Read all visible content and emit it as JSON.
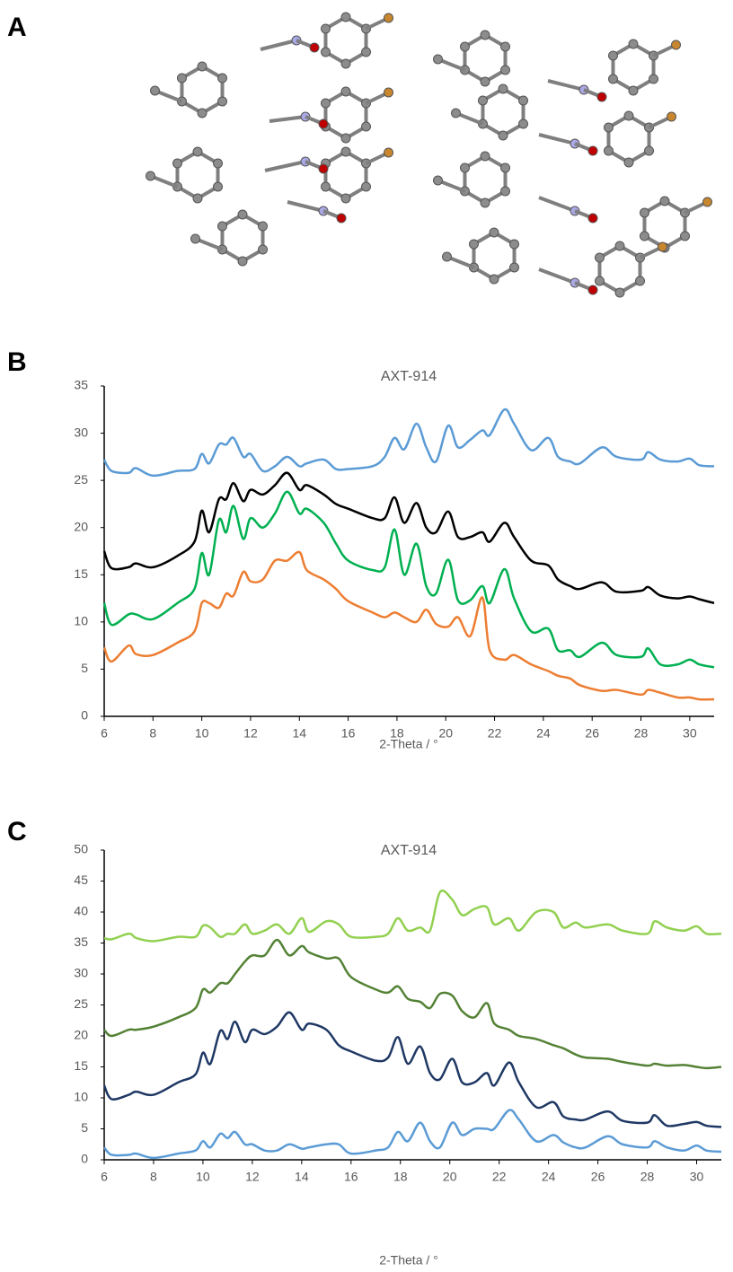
{
  "panel_labels": [
    "A",
    "B",
    "C"
  ],
  "chart_data": [
    {
      "type": "line",
      "title": "AXT-914",
      "x_label": "2-Theta / °",
      "x": [
        6,
        6.3,
        7,
        7.3,
        8,
        9,
        9.7,
        10,
        10.3,
        10.7,
        11,
        11.3,
        11.7,
        12,
        12.5,
        13,
        13.5,
        14,
        14.3,
        15,
        15.5,
        16,
        17,
        17.5,
        17.9,
        18.3,
        18.8,
        19.2,
        19.6,
        20.1,
        20.5,
        21,
        21.5,
        21.8,
        22.4,
        22.8,
        23.5,
        24.2,
        24.6,
        25.1,
        25.5,
        26.4,
        27,
        28,
        28.3,
        28.8,
        29.5,
        30,
        30.4,
        31
      ],
      "series": [
        {
          "color": "#5b9bd5",
          "values": [
            27.2,
            26,
            25.8,
            26.3,
            25.5,
            26,
            26.2,
            27.8,
            26.8,
            28.8,
            28.8,
            29.5,
            27.5,
            27.8,
            26,
            26.5,
            27.5,
            26.5,
            26.8,
            27.2,
            26.2,
            26.2,
            26.5,
            27.5,
            29.5,
            28.3,
            31,
            28.5,
            27,
            30.8,
            28.5,
            29.3,
            30.3,
            29.8,
            32.5,
            31,
            28.2,
            29.5,
            27.5,
            27,
            26.8,
            28.5,
            27.5,
            27.2,
            28,
            27.2,
            27,
            27.3,
            26.6,
            26.5
          ]
        },
        {
          "color": "#000000",
          "values": [
            17.5,
            15.7,
            15.8,
            16.2,
            15.8,
            17,
            18.5,
            21.8,
            19.5,
            23,
            23,
            24.7,
            22.8,
            24,
            23.5,
            24.5,
            25.8,
            24,
            24.5,
            23.5,
            22.5,
            22,
            21,
            21,
            23.2,
            20.5,
            22.6,
            20,
            19.5,
            21.7,
            19,
            19,
            19.5,
            18.5,
            20.5,
            19,
            16.5,
            16,
            14.5,
            13.8,
            13.5,
            14.2,
            13.2,
            13.3,
            13.7,
            12.8,
            12.5,
            12.7,
            12.4,
            12
          ]
        },
        {
          "color": "#00b050",
          "values": [
            12,
            9.7,
            10.8,
            10.8,
            10.3,
            12,
            13.5,
            17.3,
            15,
            20.8,
            19.5,
            22.3,
            18.8,
            21,
            20,
            21.5,
            23.8,
            21.5,
            22,
            20.5,
            18.3,
            16.5,
            15.5,
            15.8,
            19.8,
            15,
            18.3,
            13.8,
            13,
            16.6,
            12.3,
            12.3,
            13.8,
            12,
            15.6,
            12.5,
            9,
            9.3,
            7,
            7,
            6.3,
            7.8,
            6.5,
            6.3,
            7.2,
            5.5,
            5.5,
            6,
            5.5,
            5.2
          ]
        },
        {
          "color": "#ed7d31",
          "values": [
            7.3,
            5.8,
            7.5,
            6.6,
            6.5,
            7.8,
            9,
            12,
            12,
            11.5,
            13,
            12.8,
            15.3,
            14.3,
            14.5,
            16.5,
            16.5,
            17.4,
            15.5,
            14.5,
            13.5,
            12.2,
            11,
            10.5,
            11,
            10.5,
            10,
            11.3,
            9.8,
            9.5,
            10.5,
            8.5,
            12.6,
            7,
            6,
            6.5,
            5.5,
            4.8,
            4.3,
            4,
            3.3,
            2.7,
            2.8,
            2.3,
            2.8,
            2.5,
            2,
            2,
            1.8,
            1.8
          ]
        }
      ],
      "xlim": [
        6,
        31
      ],
      "xticks": [
        6,
        8,
        10,
        12,
        14,
        16,
        18,
        20,
        22,
        24,
        26,
        28,
        30
      ],
      "ylim": [
        0,
        35
      ],
      "yticks": [
        0,
        5,
        10,
        15,
        20,
        25,
        30,
        35
      ],
      "grid": false
    },
    {
      "type": "line",
      "title": "AXT-914",
      "x_label": "2-Theta / °",
      "x": [
        6,
        6.3,
        7,
        7.3,
        8,
        9,
        9.7,
        10,
        10.3,
        10.7,
        11,
        11.3,
        11.7,
        12,
        12.5,
        13,
        13.5,
        14,
        14.3,
        15,
        15.5,
        16,
        17,
        17.5,
        17.9,
        18.3,
        18.8,
        19.2,
        19.6,
        20.1,
        20.5,
        21,
        21.5,
        21.8,
        22.4,
        22.8,
        23.5,
        24.2,
        24.6,
        25.1,
        25.5,
        26.4,
        27,
        28,
        28.3,
        28.8,
        29.5,
        30,
        30.4,
        31
      ],
      "series": [
        {
          "color": "#92d050",
          "values": [
            35.8,
            35.6,
            36.5,
            35.8,
            35.3,
            36,
            36,
            37.8,
            37.5,
            36,
            36.5,
            36.5,
            38,
            36.5,
            37,
            38,
            36.5,
            39,
            36.8,
            38.5,
            38,
            36,
            36,
            36.5,
            39,
            37,
            37.5,
            37,
            43.2,
            42,
            39.5,
            40.5,
            40.8,
            38,
            39,
            37,
            40,
            40,
            37.5,
            38.3,
            37.5,
            38,
            37,
            36.5,
            38.5,
            37.5,
            37,
            37.7,
            36.5,
            36.5
          ]
        },
        {
          "color": "#548235",
          "values": [
            21,
            20,
            21,
            21,
            21.5,
            23,
            24.5,
            27.5,
            27,
            28.5,
            28.5,
            30,
            32,
            33,
            33,
            35.5,
            33,
            34.5,
            33.5,
            32.5,
            32.5,
            29.5,
            27.5,
            27,
            28,
            26,
            25.5,
            24.5,
            26.8,
            26.5,
            24,
            23,
            25.3,
            22,
            21,
            20,
            19.5,
            18.5,
            18,
            17,
            16.5,
            16.3,
            15.8,
            15.2,
            15.5,
            15.2,
            15.3,
            15,
            14.8,
            15
          ]
        },
        {
          "color": "#1f3864",
          "values": [
            12,
            9.8,
            10.5,
            11,
            10.5,
            12.5,
            13.8,
            17.3,
            15.5,
            20.8,
            19.5,
            22.3,
            19,
            21,
            20.3,
            21.5,
            23.8,
            21,
            22,
            21,
            18.5,
            17.5,
            16,
            16.5,
            19.8,
            15.5,
            18.3,
            14,
            13,
            16.3,
            12.5,
            12.5,
            14,
            12,
            15.7,
            12.5,
            8.5,
            9.3,
            7,
            6.5,
            6.5,
            7.8,
            6.3,
            6,
            7.2,
            5.5,
            5.8,
            6.1,
            5.5,
            5.3
          ]
        },
        {
          "color": "#5b9bd5",
          "values": [
            2,
            0.8,
            0.8,
            1,
            0.3,
            1,
            1.5,
            3,
            2,
            4.2,
            3.5,
            4.5,
            2.5,
            2.5,
            1.5,
            1.5,
            2.5,
            1.8,
            2,
            2.5,
            2.5,
            1,
            1.5,
            2,
            4.5,
            3,
            6,
            3,
            2,
            6,
            4,
            5,
            5,
            5,
            8,
            6.5,
            3,
            4,
            2.8,
            2,
            2,
            3.8,
            2.5,
            2,
            3,
            2,
            1.5,
            2.3,
            1.5,
            1.3
          ]
        }
      ],
      "xlim": [
        6,
        31
      ],
      "xticks": [
        6,
        8,
        10,
        12,
        14,
        16,
        18,
        20,
        22,
        24,
        26,
        28,
        30
      ],
      "ylim": [
        0,
        50
      ],
      "yticks": [
        0,
        5,
        10,
        15,
        20,
        25,
        30,
        35,
        40,
        45,
        50
      ],
      "grid": false
    }
  ]
}
